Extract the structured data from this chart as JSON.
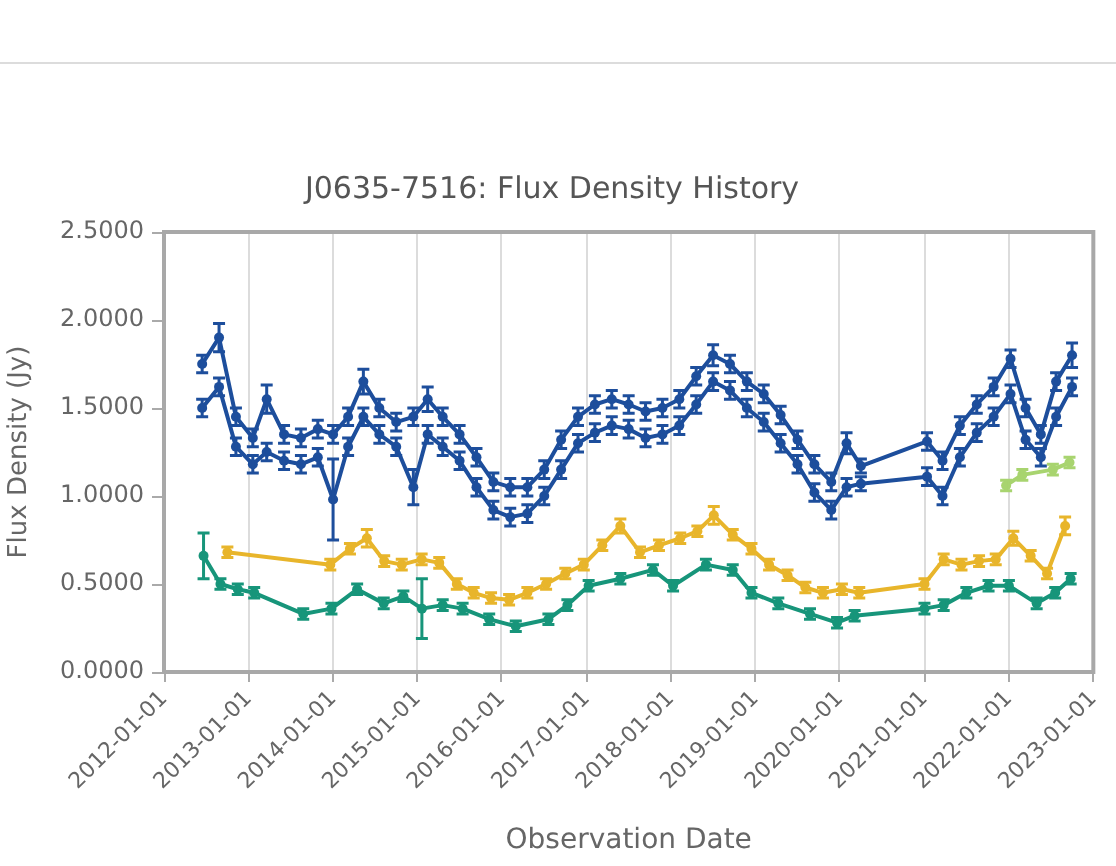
{
  "chart_data": {
    "type": "line",
    "title": "J0635-7516: Flux Density History",
    "xlabel": "Observation Date",
    "ylabel": "Flux Density (Jy)",
    "xlim": [
      "2012-01-01",
      "2023-01-01"
    ],
    "xticks": [
      "2012-01-01",
      "2013-01-01",
      "2014-01-01",
      "2015-01-01",
      "2016-01-01",
      "2017-01-01",
      "2018-01-01",
      "2019-01-01",
      "2020-01-01",
      "2021-01-01",
      "2022-01-01",
      "2023-01-01"
    ],
    "ylim": [
      0,
      2.5
    ],
    "yticks": [
      {
        "value": 0,
        "label": "0.0000"
      },
      {
        "value": 0.5,
        "label": "0.5000"
      },
      {
        "value": 1,
        "label": "1.0000"
      },
      {
        "value": 1.5,
        "label": "1.5000"
      },
      {
        "value": 2,
        "label": "2.0000"
      },
      {
        "value": 2.5,
        "label": "2.5000"
      }
    ],
    "grid": "x",
    "marker": "circle",
    "line_style": "solid",
    "series": [
      {
        "color": "#1d4e9c",
        "x": [
          "2012-06-14",
          "2012-08-26",
          "2012-11-07",
          "2013-01-19",
          "2013-03-20",
          "2013-06-03",
          "2013-08-15",
          "2013-10-27",
          "2014-01-01",
          "2014-03-07",
          "2014-05-12",
          "2014-07-20",
          "2014-10-01",
          "2014-12-14",
          "2015-02-14",
          "2015-04-20",
          "2015-07-02",
          "2015-09-13",
          "2015-11-25",
          "2016-02-06",
          "2016-04-20",
          "2016-07-02",
          "2016-09-13",
          "2016-11-25",
          "2017-02-06",
          "2017-04-20",
          "2017-07-02",
          "2017-09-13",
          "2017-11-25",
          "2018-02-06",
          "2018-04-20",
          "2018-07-02",
          "2018-09-13",
          "2018-11-25",
          "2019-02-06",
          "2019-04-20",
          "2019-07-02",
          "2019-09-13",
          "2019-11-25",
          "2020-01-30",
          "2020-04-01",
          "2021-01-12",
          "2021-03-20",
          "2021-06-03",
          "2021-08-15",
          "2021-10-27",
          "2022-01-08",
          "2022-03-14",
          "2022-05-19",
          "2022-07-24",
          "2022-10-01"
        ],
        "values": [
          1.75,
          1.9,
          1.45,
          1.33,
          1.55,
          1.35,
          1.33,
          1.38,
          1.35,
          1.45,
          1.65,
          1.5,
          1.42,
          1.45,
          1.55,
          1.45,
          1.35,
          1.22,
          1.08,
          1.05,
          1.05,
          1.15,
          1.32,
          1.45,
          1.52,
          1.55,
          1.52,
          1.48,
          1.5,
          1.55,
          1.68,
          1.8,
          1.75,
          1.65,
          1.58,
          1.46,
          1.32,
          1.18,
          1.08,
          1.3,
          1.17,
          1.31,
          1.2,
          1.4,
          1.52,
          1.62,
          1.78,
          1.5,
          1.35,
          1.65,
          1.8
        ],
        "errors": [
          0.05,
          0.08,
          0.05,
          0.05,
          0.08,
          0.05,
          0.05,
          0.05,
          0.05,
          0.05,
          0.07,
          0.05,
          0.05,
          0.05,
          0.07,
          0.05,
          0.05,
          0.05,
          0.05,
          0.05,
          0.05,
          0.05,
          0.05,
          0.05,
          0.05,
          0.05,
          0.05,
          0.05,
          0.05,
          0.05,
          0.05,
          0.06,
          0.05,
          0.05,
          0.05,
          0.05,
          0.05,
          0.05,
          0.05,
          0.06,
          0.04,
          0.05,
          0.05,
          0.05,
          0.05,
          0.05,
          0.05,
          0.05,
          0.05,
          0.05,
          0.07
        ]
      },
      {
        "color": "#1d4e9c",
        "x": [
          "2012-06-14",
          "2012-08-26",
          "2012-11-07",
          "2013-01-19",
          "2013-03-20",
          "2013-06-03",
          "2013-08-15",
          "2013-10-27",
          "2014-01-01",
          "2014-03-07",
          "2014-05-12",
          "2014-07-20",
          "2014-10-01",
          "2014-12-14",
          "2015-02-14",
          "2015-04-20",
          "2015-07-02",
          "2015-09-13",
          "2015-11-25",
          "2016-02-06",
          "2016-04-20",
          "2016-07-02",
          "2016-09-13",
          "2016-11-25",
          "2017-02-06",
          "2017-04-20",
          "2017-07-02",
          "2017-09-13",
          "2017-11-25",
          "2018-02-06",
          "2018-04-20",
          "2018-07-02",
          "2018-09-13",
          "2018-11-25",
          "2019-02-06",
          "2019-04-20",
          "2019-07-02",
          "2019-09-13",
          "2019-11-25",
          "2020-01-30",
          "2020-04-01",
          "2021-01-12",
          "2021-03-20",
          "2021-06-03",
          "2021-08-15",
          "2021-10-27",
          "2022-01-08",
          "2022-03-14",
          "2022-05-19",
          "2022-07-24",
          "2022-10-01"
        ],
        "values": [
          1.5,
          1.62,
          1.28,
          1.18,
          1.25,
          1.2,
          1.18,
          1.22,
          0.98,
          1.28,
          1.45,
          1.35,
          1.28,
          1.05,
          1.35,
          1.28,
          1.2,
          1.05,
          0.92,
          0.88,
          0.9,
          1.0,
          1.15,
          1.3,
          1.36,
          1.4,
          1.38,
          1.33,
          1.35,
          1.4,
          1.52,
          1.65,
          1.6,
          1.5,
          1.42,
          1.3,
          1.18,
          1.02,
          0.92,
          1.05,
          1.07,
          1.11,
          1.0,
          1.22,
          1.36,
          1.45,
          1.58,
          1.32,
          1.22,
          1.45,
          1.62
        ],
        "errors": [
          0.05,
          0.05,
          0.05,
          0.05,
          0.05,
          0.05,
          0.05,
          0.05,
          0.23,
          0.05,
          0.05,
          0.05,
          0.05,
          0.1,
          0.05,
          0.05,
          0.05,
          0.05,
          0.05,
          0.05,
          0.05,
          0.05,
          0.05,
          0.05,
          0.05,
          0.05,
          0.05,
          0.05,
          0.05,
          0.05,
          0.05,
          0.05,
          0.05,
          0.05,
          0.05,
          0.05,
          0.05,
          0.05,
          0.05,
          0.05,
          0.04,
          0.05,
          0.05,
          0.05,
          0.05,
          0.05,
          0.05,
          0.05,
          0.05,
          0.05,
          0.05
        ]
      },
      {
        "color": "#e8b52b",
        "x": [
          "2012-10-01",
          "2013-12-20",
          "2014-03-15",
          "2014-05-27",
          "2014-08-10",
          "2014-10-25",
          "2015-01-19",
          "2015-04-05",
          "2015-06-20",
          "2015-09-01",
          "2015-11-15",
          "2016-02-01",
          "2016-04-20",
          "2016-07-10",
          "2016-10-01",
          "2016-12-20",
          "2017-03-10",
          "2017-05-27",
          "2017-08-20",
          "2017-11-10",
          "2018-02-10",
          "2018-04-25",
          "2018-07-05",
          "2018-09-25",
          "2018-12-15",
          "2019-03-01",
          "2019-05-20",
          "2019-08-05",
          "2019-10-20",
          "2020-01-10",
          "2020-03-25",
          "2021-01-01",
          "2021-03-25",
          "2021-06-10",
          "2021-08-25",
          "2021-11-05",
          "2022-01-20",
          "2022-04-05",
          "2022-06-15",
          "2022-09-01"
        ],
        "values": [
          0.68,
          0.61,
          0.7,
          0.76,
          0.63,
          0.61,
          0.64,
          0.62,
          0.5,
          0.45,
          0.42,
          0.41,
          0.45,
          0.5,
          0.56,
          0.61,
          0.72,
          0.83,
          0.68,
          0.72,
          0.76,
          0.8,
          0.89,
          0.78,
          0.7,
          0.61,
          0.55,
          0.48,
          0.45,
          0.47,
          0.45,
          0.5,
          0.64,
          0.61,
          0.63,
          0.64,
          0.76,
          0.66,
          0.56,
          0.83
        ],
        "errors": [
          0.03,
          0.03,
          0.03,
          0.05,
          0.03,
          0.03,
          0.03,
          0.03,
          0.03,
          0.03,
          0.03,
          0.03,
          0.03,
          0.03,
          0.03,
          0.03,
          0.03,
          0.04,
          0.03,
          0.03,
          0.03,
          0.03,
          0.05,
          0.03,
          0.03,
          0.03,
          0.03,
          0.03,
          0.03,
          0.03,
          0.03,
          0.03,
          0.03,
          0.03,
          0.03,
          0.03,
          0.04,
          0.03,
          0.03,
          0.05
        ]
      },
      {
        "color": "#17957a",
        "x": [
          "2012-06-20",
          "2012-09-01",
          "2012-11-15",
          "2013-01-25",
          "2013-08-25",
          "2013-12-25",
          "2014-04-15",
          "2014-08-08",
          "2014-11-01",
          "2015-01-20",
          "2015-04-20",
          "2015-07-15",
          "2015-11-07",
          "2016-03-01",
          "2016-07-20",
          "2016-10-10",
          "2017-01-10",
          "2017-05-27",
          "2017-10-15",
          "2018-01-10",
          "2018-06-01",
          "2018-09-25",
          "2018-12-15",
          "2019-04-10",
          "2019-08-25",
          "2019-12-20",
          "2020-03-05",
          "2021-01-01",
          "2021-03-25",
          "2021-07-01",
          "2021-10-05",
          "2022-01-01",
          "2022-05-01",
          "2022-07-20",
          "2022-09-25"
        ],
        "values": [
          0.66,
          0.5,
          0.47,
          0.45,
          0.33,
          0.36,
          0.47,
          0.39,
          0.43,
          0.36,
          0.38,
          0.36,
          0.3,
          0.26,
          0.3,
          0.38,
          0.49,
          0.53,
          0.58,
          0.49,
          0.61,
          0.58,
          0.45,
          0.39,
          0.33,
          0.28,
          0.32,
          0.36,
          0.38,
          0.45,
          0.49,
          0.49,
          0.39,
          0.45,
          0.53
        ],
        "errors": [
          0.13,
          0.03,
          0.03,
          0.03,
          0.03,
          0.03,
          0.03,
          0.03,
          0.03,
          0.17,
          0.03,
          0.03,
          0.03,
          0.03,
          0.03,
          0.03,
          0.03,
          0.03,
          0.03,
          0.03,
          0.03,
          0.03,
          0.03,
          0.03,
          0.03,
          0.03,
          0.03,
          0.03,
          0.03,
          0.03,
          0.03,
          0.03,
          0.03,
          0.03,
          0.03
        ]
      },
      {
        "color": "#a8d46f",
        "x": [
          "2021-12-20",
          "2022-02-28",
          "2022-07-10",
          "2022-09-20"
        ],
        "values": [
          1.06,
          1.12,
          1.15,
          1.19
        ],
        "errors": [
          0.03,
          0.03,
          0.03,
          0.03
        ]
      }
    ]
  }
}
